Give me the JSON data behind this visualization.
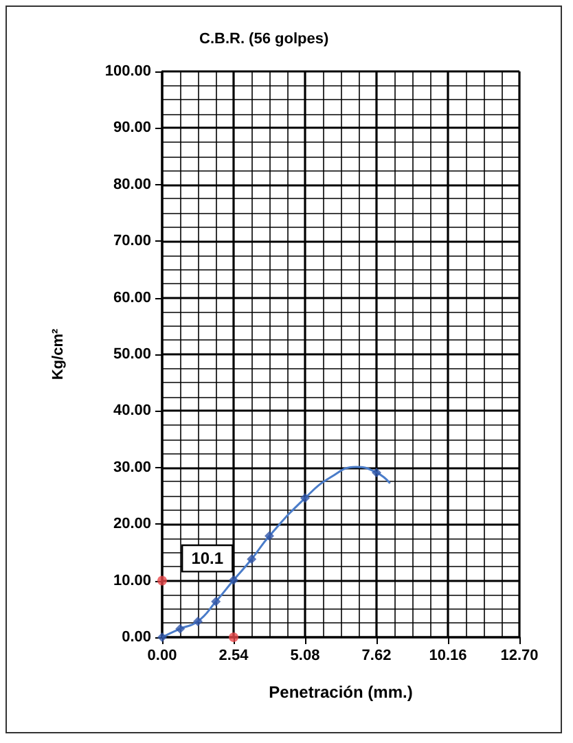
{
  "chart_data": {
    "type": "scatter",
    "title": "C.B.R. (56 golpes)",
    "xlabel": "Penetración (mm.)",
    "ylabel": "Kg/cm²",
    "xlim": [
      0,
      12.7
    ],
    "xticks": [
      {
        "value": 0,
        "label": "0.00"
      },
      {
        "value": 2.54,
        "label": "2.54"
      },
      {
        "value": 5.08,
        "label": "5.08"
      },
      {
        "value": 7.62,
        "label": "7.62"
      },
      {
        "value": 10.16,
        "label": "10.16"
      },
      {
        "value": 12.7,
        "label": "12.70"
      }
    ],
    "ylim": [
      0,
      100
    ],
    "yticks": [
      {
        "value": 0,
        "label": "0.00"
      },
      {
        "value": 10,
        "label": "10.00"
      },
      {
        "value": 20,
        "label": "20.00"
      },
      {
        "value": 30,
        "label": "30.00"
      },
      {
        "value": 40,
        "label": "40.00"
      },
      {
        "value": 50,
        "label": "50.00"
      },
      {
        "value": 60,
        "label": "60.00"
      },
      {
        "value": 70,
        "label": "70.00"
      },
      {
        "value": 80,
        "label": "80.00"
      },
      {
        "value": 90,
        "label": "90.00"
      },
      {
        "value": 100,
        "label": "100.00"
      }
    ],
    "grid": true,
    "series": [
      {
        "type": "line",
        "color": "#4a7cc9",
        "marker": "none",
        "x": [
          0,
          0.64,
          1.27,
          1.91,
          2.54,
          3.18,
          3.81,
          5.08,
          6.0,
          6.9,
          7.62,
          8.1
        ],
        "values": [
          0,
          1.5,
          2.8,
          6.3,
          10.1,
          13.8,
          17.9,
          24.6,
          28.3,
          30.1,
          29.1,
          27.2
        ]
      },
      {
        "color": "#2f55a8",
        "marker": "diamond",
        "x": [
          0,
          0.64,
          1.27,
          1.91,
          2.54,
          3.18,
          3.81,
          5.08,
          7.62
        ],
        "values": [
          0,
          1.5,
          2.8,
          6.3,
          10.1,
          13.8,
          17.9,
          24.6,
          29.1
        ]
      },
      {
        "color": "#e8474a",
        "marker": "circle",
        "x": [
          0,
          2.54
        ],
        "values": [
          10,
          0
        ]
      }
    ],
    "annotations": [
      {
        "text": "10.1",
        "x": 2.54,
        "y": 10.1
      }
    ]
  }
}
